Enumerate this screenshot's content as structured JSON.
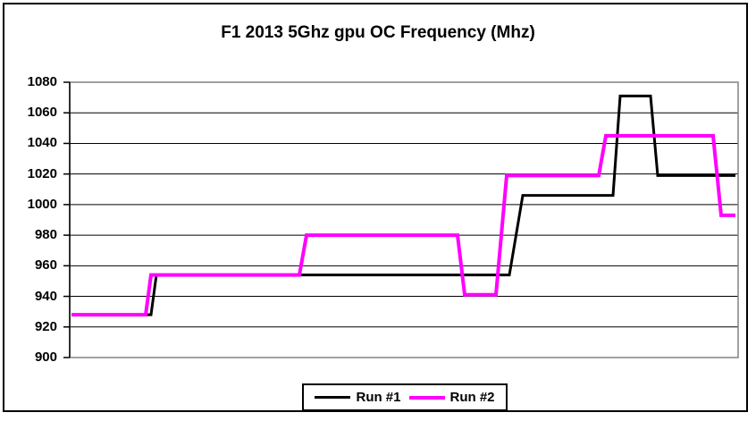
{
  "title": "F1 2013 5Ghz gpu OC Frequency (Mhz)",
  "chart_data": {
    "type": "line",
    "title": "F1 2013 5Ghz gpu OC Frequency (Mhz)",
    "xlabel": "",
    "ylabel": "",
    "ylim": [
      900,
      1080
    ],
    "y_ticks": [
      1080,
      1060,
      1040,
      1020,
      1000,
      980,
      960,
      940,
      920,
      900
    ],
    "y_tick_step": 20,
    "x_range_percent": [
      0,
      100
    ],
    "x_tick_labels_visible": false,
    "grid": "horizontal",
    "line_style": "step",
    "legend_position": "bottom-center",
    "series": [
      {
        "name": "Run #1",
        "color": "#000000",
        "stroke_width": 3,
        "points": [
          [
            0,
            928
          ],
          [
            11.98,
            928
          ],
          [
            12.79,
            954
          ],
          [
            65.95,
            954
          ],
          [
            67.97,
            1006
          ],
          [
            81.56,
            1006
          ],
          [
            82.64,
            1071
          ],
          [
            87.21,
            1071
          ],
          [
            88.29,
            1019
          ],
          [
            100,
            1019
          ]
        ]
      },
      {
        "name": "Run #2",
        "color": "#FF00FF",
        "stroke_width": 4,
        "points": [
          [
            0,
            928
          ],
          [
            11.17,
            928
          ],
          [
            11.98,
            954
          ],
          [
            34.32,
            954
          ],
          [
            35.4,
            980
          ],
          [
            58.14,
            980
          ],
          [
            59.22,
            941
          ],
          [
            63.93,
            941
          ],
          [
            65.55,
            1019
          ],
          [
            79.41,
            1019
          ],
          [
            80.48,
            1045
          ],
          [
            96.64,
            1045
          ],
          [
            97.85,
            993
          ],
          [
            100,
            993
          ]
        ]
      }
    ]
  },
  "legend": {
    "items": [
      {
        "label": "Run #1",
        "color": "#000000",
        "swatch_thickness": 3
      },
      {
        "label": "Run #2",
        "color": "#FF00FF",
        "swatch_thickness": 4
      }
    ]
  },
  "colors": {
    "background": "#FFFFFF",
    "outer_border": "#000000",
    "plot_frame": "#848284",
    "gridline": "#000000",
    "axis": "#000000",
    "text": "#000000"
  }
}
